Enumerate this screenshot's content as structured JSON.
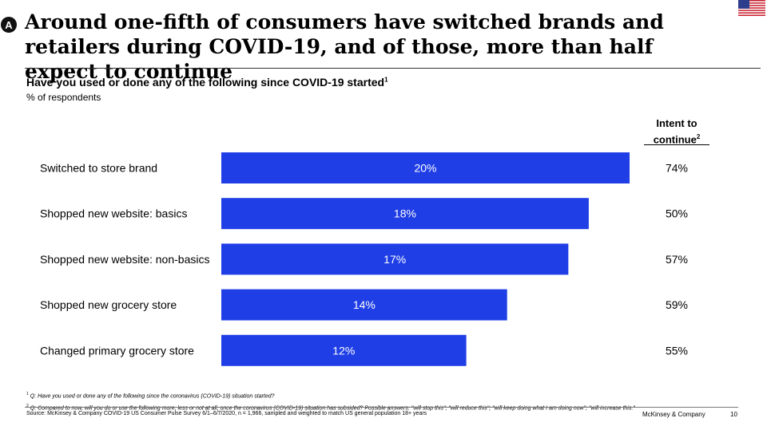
{
  "badge": "A",
  "title": "Around one-fifth of consumers have switched brands and retailers during COVID-19, and of those, more than half expect to continue",
  "question": "Have you used or done any of the following since COVID-19 started",
  "question_sup": "1",
  "unit": "% of respondents",
  "intent_header_line1": "Intent to",
  "intent_header_line2": "continue",
  "intent_header_sup": "2",
  "colors": {
    "bar": "#1f3ee6",
    "bar_label": "#ffffff",
    "text": "#000000"
  },
  "flag_icon": "us-flag-icon",
  "chart_data": {
    "type": "bar",
    "orientation": "horizontal",
    "categories": [
      "Switched to store brand",
      "Shopped new website: basics",
      "Shopped new website: non-basics",
      "Shopped new grocery store",
      "Changed primary grocery store"
    ],
    "values": [
      20,
      18,
      17,
      14,
      12
    ],
    "value_labels": [
      "20%",
      "18%",
      "17%",
      "14%",
      "12%"
    ],
    "intent_to_continue": [
      "74%",
      "50%",
      "57%",
      "59%",
      "55%"
    ],
    "grid": false,
    "legend": "none"
  },
  "footnote1_mark": "1",
  "footnote1": "Q: Have you used or done any of the following since the coronavirus (COVID-19) situation started?",
  "footnote2_mark": "2",
  "footnote2": "Q: Compared to now, will you do or use the following more, less or not at all, once the coronavirus (COVID-19) situation has subsided? Possible answers: \"will stop this\"; \"will reduce this\"; \"will keep doing what I am doing now\"; \"will increase this.\"",
  "source": "Source: McKinsey & Company COVID-19 US Consumer Pulse Survey 6/1–6/7/2020, n = 1,966, sampled and weighted to match US general population 18+ years",
  "brand": "McKinsey & Company",
  "page_number": "10"
}
